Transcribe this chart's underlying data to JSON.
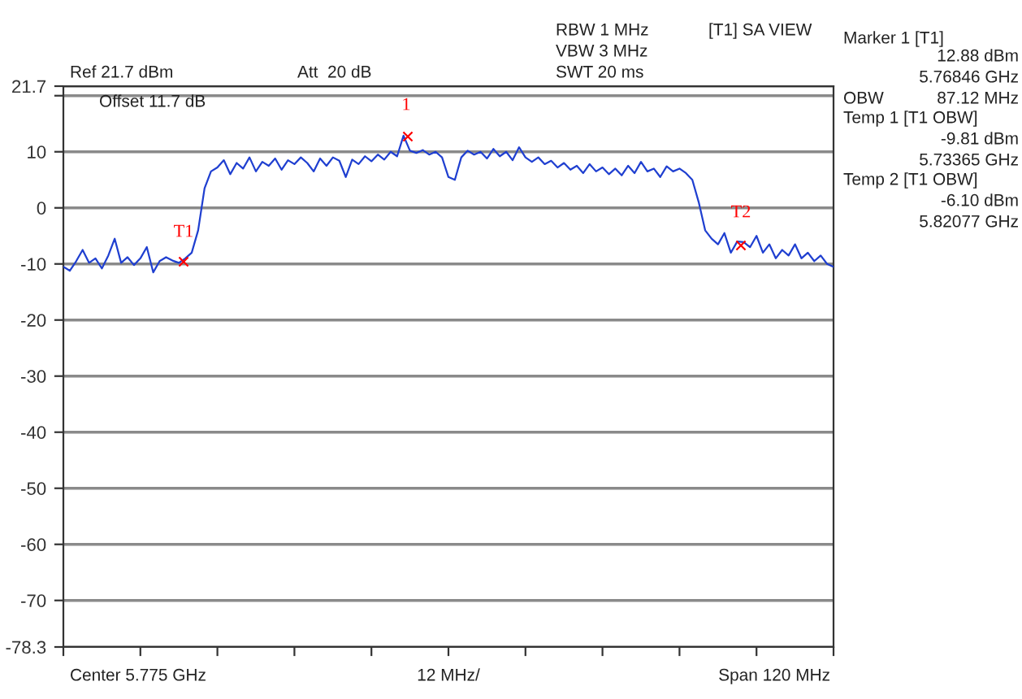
{
  "chart_data": {
    "type": "line",
    "tick_labels": "y",
    "grid": "y",
    "categories": [
      null,
      null,
      null,
      null,
      null,
      null,
      null,
      null,
      null,
      null,
      null,
      null,
      null,
      null,
      null,
      null,
      null,
      null,
      null,
      null,
      null,
      null,
      null,
      null,
      null,
      null,
      null,
      null,
      null,
      null,
      null,
      null,
      null,
      null,
      null,
      null,
      null,
      null,
      null,
      null,
      null,
      null,
      null,
      null,
      null,
      null,
      null,
      null,
      null,
      null,
      null,
      null,
      null,
      null,
      null,
      null,
      null,
      null,
      null,
      null,
      null,
      null,
      null,
      null,
      null,
      null,
      null,
      null,
      null,
      null,
      null,
      null,
      null,
      null,
      null,
      null,
      null,
      null,
      null,
      null,
      null,
      null,
      null,
      null,
      null,
      null,
      null,
      null,
      null,
      null,
      null,
      null,
      null,
      null,
      null,
      null,
      null,
      null,
      null,
      null,
      null,
      null,
      null,
      null,
      null,
      null,
      null,
      null,
      null,
      null,
      null,
      null,
      null,
      null,
      null,
      null,
      null,
      null,
      null,
      null,
      null
    ],
    "ylim": [
      -78.3,
      21.7
    ],
    "yticks": [
      21.7,
      {
        "value": 20,
        "label": null
      },
      10,
      0,
      -10,
      -20,
      -30,
      -40,
      -50,
      -60,
      -70,
      -78.3
    ],
    "series": [
      {
        "color": "#1f3fd0",
        "values": [
          -10.5,
          -11.2,
          -9.5,
          -7.5,
          -9.8,
          -9.0,
          -10.8,
          -8.5,
          -5.5,
          -9.8,
          -8.8,
          -10.2,
          -9.0,
          -7.0,
          -11.5,
          -9.5,
          -8.8,
          -9.4,
          -9.8,
          -9.0,
          -8.0,
          -4.0,
          3.5,
          6.5,
          7.2,
          8.5,
          6.0,
          8.0,
          7.0,
          9.0,
          6.5,
          8.2,
          7.5,
          8.8,
          6.8,
          8.5,
          7.8,
          9.0,
          8.0,
          6.5,
          8.8,
          7.5,
          9.0,
          8.4,
          5.5,
          8.6,
          7.8,
          9.2,
          8.3,
          9.5,
          8.6,
          10.0,
          9.2,
          12.88,
          10.2,
          9.8,
          10.3,
          9.5,
          10.0,
          9.0,
          5.5,
          5.0,
          9.0,
          10.2,
          9.5,
          10.0,
          8.8,
          10.5,
          9.2,
          10.0,
          8.5,
          10.8,
          9.0,
          8.2,
          9.0,
          7.8,
          8.4,
          7.2,
          8.0,
          6.8,
          7.5,
          6.2,
          7.8,
          6.5,
          7.2,
          6.0,
          7.0,
          5.8,
          7.5,
          6.2,
          8.2,
          6.5,
          7.0,
          5.5,
          7.4,
          6.5,
          7.0,
          6.2,
          5.0,
          1.0,
          -4.0,
          -5.5,
          -6.5,
          -4.5,
          -8.0,
          -6.0,
          -6.1,
          -7.0,
          -5.0,
          -8.0,
          -6.5,
          -9.0,
          -7.5,
          -8.5,
          -6.5,
          -9.0,
          -8.0,
          -9.5,
          -8.5,
          -10.0,
          -10.5
        ]
      }
    ],
    "annotations": [
      "Ref 21.7 dBm",
      "Att  20 dB",
      "Offset 11.7 dB",
      "RBW 1 MHz",
      "VBW 3 MHz",
      "SWT 20 ms",
      "[T1] SA VIEW",
      "Marker 1 [T1]",
      "12.88 dBm",
      "5.76846 GHz",
      "OBW",
      "87.12 MHz",
      "Temp 1 [T1 OBW]",
      "-9.81 dBm",
      "5.73365 GHz",
      "Temp 2 [T1 OBW]",
      "-6.10 dBm",
      "5.82077 GHz",
      "Center 5.775 GHz",
      "12 MHz/",
      "Span 120 MHz",
      "T1",
      "1",
      "T2"
    ]
  }
}
